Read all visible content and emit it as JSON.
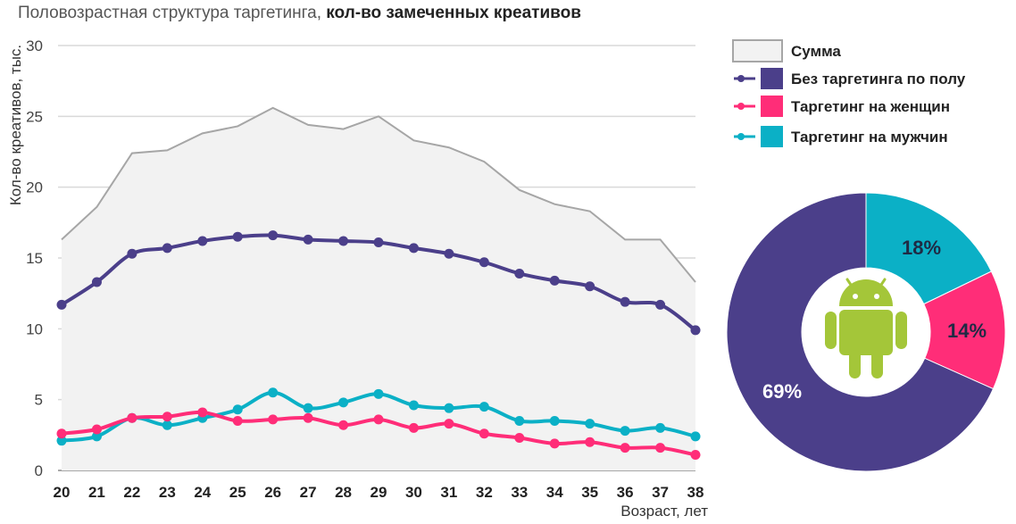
{
  "title": {
    "prefix": "Половозрастная структура таргетинга,",
    "bold": "кол-во замеченных креативов"
  },
  "colors": {
    "sum_fill": "#f2f2f2",
    "sum_line": "#a6a6a6",
    "no_gender": "#4b3f8a",
    "women": "#ff2d78",
    "men": "#0bb0c6",
    "android": "#a4c639",
    "grid": "#d9d9d9"
  },
  "chart_data": {
    "type": "line",
    "ylabel": "Кол-во креативов, тыс.",
    "xlabel": "Возраст, лет",
    "ylim": [
      0,
      30
    ],
    "yticks": [
      0,
      5,
      10,
      15,
      20,
      25,
      30
    ],
    "grid": true,
    "legend_position": "right",
    "x": [
      20,
      21,
      22,
      23,
      24,
      25,
      26,
      27,
      28,
      29,
      30,
      31,
      32,
      33,
      34,
      35,
      36,
      37,
      38
    ],
    "series": [
      {
        "name": "Сумма",
        "kind": "area",
        "color": "#a6a6a6",
        "values": [
          16.3,
          18.6,
          22.4,
          22.6,
          23.8,
          24.3,
          25.6,
          24.4,
          24.1,
          25.0,
          23.3,
          22.8,
          21.8,
          19.8,
          18.8,
          18.3,
          16.3,
          16.3,
          13.3
        ]
      },
      {
        "name": "Без таргетинга по полу",
        "kind": "line",
        "color": "#4b3f8a",
        "values": [
          11.7,
          13.3,
          15.3,
          15.7,
          16.2,
          16.5,
          16.6,
          16.3,
          16.2,
          16.1,
          15.7,
          15.3,
          14.7,
          13.9,
          13.4,
          13.0,
          11.9,
          11.7,
          9.9
        ]
      },
      {
        "name": "Таргетинг на женщин",
        "kind": "line",
        "color": "#ff2d78",
        "values": [
          2.6,
          2.9,
          3.7,
          3.8,
          4.1,
          3.5,
          3.6,
          3.7,
          3.2,
          3.6,
          3.0,
          3.3,
          2.6,
          2.3,
          1.9,
          2.0,
          1.6,
          1.6,
          1.1
        ]
      },
      {
        "name": "Таргетинг на мужчин",
        "kind": "line",
        "color": "#0bb0c6",
        "values": [
          2.1,
          2.4,
          3.7,
          3.2,
          3.7,
          4.3,
          5.5,
          4.4,
          4.8,
          5.4,
          4.6,
          4.4,
          4.5,
          3.5,
          3.5,
          3.3,
          2.8,
          3.0,
          2.4
        ]
      }
    ],
    "donut": {
      "type": "pie",
      "slices": [
        {
          "name": "Таргетинг на мужчин",
          "label": "18%",
          "value": 18,
          "color": "#0bb0c6"
        },
        {
          "name": "Таргетинг на женщин",
          "label": "14%",
          "value": 14,
          "color": "#ff2d78"
        },
        {
          "name": "Без таргетинга по полу",
          "label": "69%",
          "value": 69,
          "color": "#4b3f8a"
        }
      ]
    }
  }
}
